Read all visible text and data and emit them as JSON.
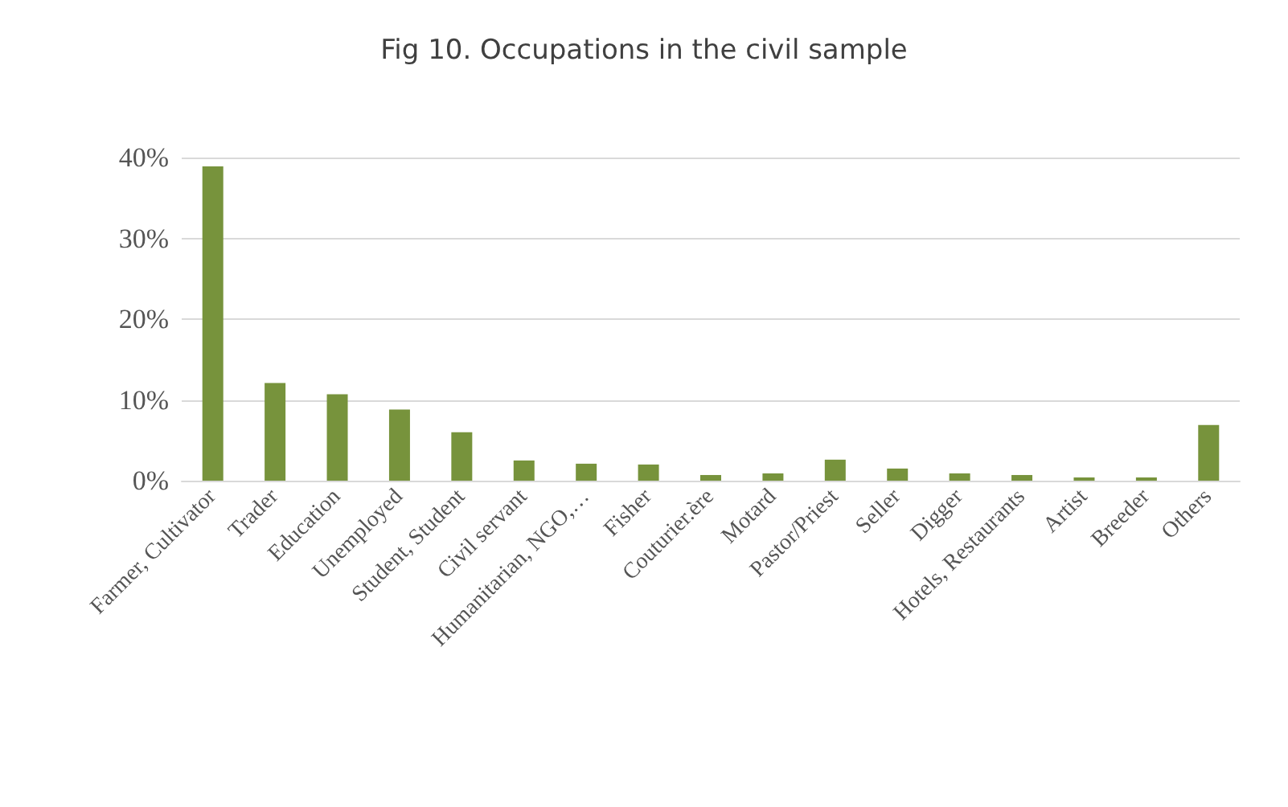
{
  "chart_data": {
    "type": "bar",
    "title": "Fig 10. Occupations in the civil sample",
    "categories": [
      "Farmer, Cultivator",
      "Trader",
      "Education",
      "Unemployed",
      "Student, Student",
      "Civil servant",
      "Humanitarian, NGO,…",
      "Fisher",
      "Couturier.ère",
      "Motard",
      "Pastor/Priest",
      "Seller",
      "Digger",
      "Hotels, Restaurants",
      "Artist",
      "Breeder",
      "Others"
    ],
    "values": [
      38.9,
      12.1,
      10.7,
      8.8,
      6.0,
      2.5,
      2.1,
      2.0,
      0.7,
      0.9,
      2.6,
      1.5,
      0.9,
      0.7,
      0.4,
      0.4,
      6.9
    ],
    "color": "#77933c",
    "ylim": [
      0,
      40
    ],
    "yticks": [
      {
        "value": 0,
        "label": "0%"
      },
      {
        "value": 10,
        "label": "10%"
      },
      {
        "value": 20,
        "label": "20%"
      },
      {
        "value": 30,
        "label": "30%"
      },
      {
        "value": 40,
        "label": "40%"
      }
    ],
    "grid": true
  }
}
